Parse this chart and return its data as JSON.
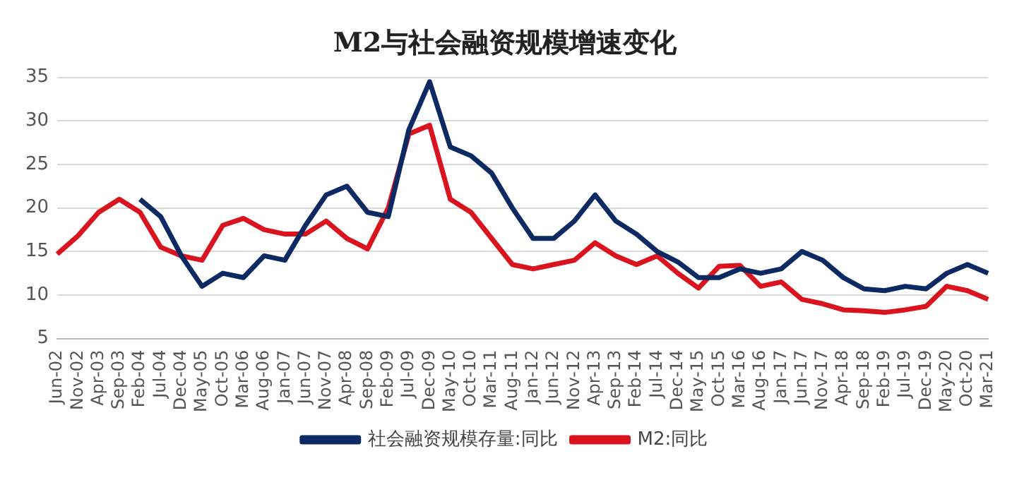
{
  "chart_data": {
    "type": "line",
    "title": "M2与社会融资规模增速变化",
    "categories": [
      "Jun-02",
      "Nov-02",
      "Apr-03",
      "Sep-03",
      "Feb-04",
      "Jul-04",
      "Dec-04",
      "May-05",
      "Oct-05",
      "Mar-06",
      "Aug-06",
      "Jan-07",
      "Jun-07",
      "Nov-07",
      "Apr-08",
      "Sep-08",
      "Feb-09",
      "Jul-09",
      "Dec-09",
      "May-10",
      "Oct-10",
      "Mar-11",
      "Aug-11",
      "Jan-12",
      "Jun-12",
      "Nov-12",
      "Apr-13",
      "Sep-13",
      "Feb-14",
      "Jul-14",
      "Dec-14",
      "May-15",
      "Oct-15",
      "Mar-16",
      "Aug-16",
      "Jan-17",
      "Jun-17",
      "Nov-17",
      "Apr-18",
      "Sep-18",
      "Feb-19",
      "Jul-19",
      "Dec-19",
      "May-20",
      "Oct-20",
      "Mar-21"
    ],
    "series": [
      {
        "name": "社会融资规模存量:同比",
        "color": "#0b2a63",
        "values": [
          null,
          null,
          null,
          null,
          21,
          19,
          14.5,
          11,
          12.5,
          12,
          14.5,
          14,
          18,
          21.5,
          22.5,
          19.5,
          19,
          29,
          34.5,
          27,
          26,
          24,
          20,
          16.5,
          16.5,
          18.5,
          21.5,
          18.5,
          17,
          15,
          13.8,
          12,
          12,
          13,
          12.5,
          13,
          15,
          14,
          12,
          10.7,
          10.5,
          11,
          10.7,
          12.5,
          13.5,
          12.5
        ]
      },
      {
        "name": "M2:同比",
        "color": "#d9141e",
        "values": [
          14.7,
          16.8,
          19.5,
          21,
          19.5,
          15.5,
          14.5,
          14,
          18,
          18.8,
          17.5,
          17,
          17,
          18.5,
          16.5,
          15.3,
          20,
          28.5,
          29.5,
          21,
          19.5,
          16.5,
          13.5,
          13,
          13.5,
          14,
          16,
          14.5,
          13.5,
          14.5,
          12.5,
          10.8,
          13.3,
          13.4,
          11,
          11.5,
          9.5,
          9,
          8.3,
          8.2,
          8,
          8.3,
          8.7,
          11,
          10.5,
          9.5
        ]
      }
    ],
    "ylim": [
      5,
      35
    ],
    "yticks": [
      5,
      10,
      15,
      20,
      25,
      30,
      35
    ],
    "grid": "y",
    "legend": "bottom",
    "marker": "none",
    "line_style": "solid"
  }
}
